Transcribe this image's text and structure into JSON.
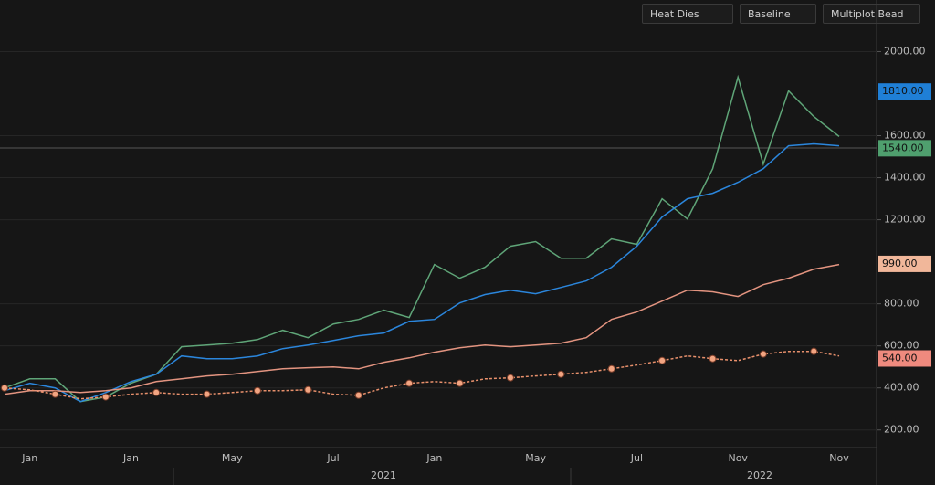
{
  "toolbar": {
    "buttons": [
      "Heat Dies",
      "Baseline",
      "Multiplot Bead"
    ]
  },
  "chart_data": {
    "type": "line",
    "categories": [
      null,
      "Jan",
      null,
      null,
      null,
      "Jan",
      null,
      null,
      null,
      "May",
      null,
      null,
      null,
      "Jul",
      null,
      null,
      null,
      "Jan",
      null,
      null,
      null,
      "May",
      null,
      null,
      null,
      "Jul",
      null,
      null,
      null,
      "Nov",
      null,
      null,
      null,
      "Nov"
    ],
    "year_labels": [
      "2021",
      "2022"
    ],
    "series": [
      {
        "name": "Green",
        "color": "#5fa578",
        "markers": false,
        "values": [
          400,
          443,
          443,
          335,
          357,
          422,
          465,
          596,
          604,
          613,
          630,
          674,
          639,
          704,
          726,
          770,
          735,
          987,
          922,
          974,
          1074,
          1096,
          1017,
          1017,
          1109,
          1083,
          1300,
          1204,
          1443,
          1878,
          1465,
          1813,
          1691,
          1596
        ]
      },
      {
        "name": "Blue",
        "color": "#2b86dc",
        "markers": false,
        "values": [
          387,
          422,
          400,
          335,
          378,
          430,
          465,
          552,
          539,
          539,
          552,
          587,
          604,
          626,
          648,
          661,
          717,
          726,
          804,
          844,
          865,
          848,
          878,
          909,
          974,
          1074,
          1213,
          1300,
          1326,
          1378,
          1443,
          1552,
          1561,
          1552
        ]
      },
      {
        "name": "Orange",
        "color": "#e39480",
        "markers": false,
        "values": [
          370,
          387,
          387,
          378,
          387,
          400,
          430,
          443,
          457,
          465,
          478,
          491,
          496,
          500,
          491,
          522,
          543,
          570,
          591,
          604,
          596,
          604,
          613,
          639,
          726,
          761,
          813,
          865,
          857,
          835,
          891,
          922,
          965,
          987
        ]
      },
      {
        "name": "Red",
        "color": "#e8906c",
        "markers": true,
        "values": [
          400,
          391,
          370,
          348,
          357,
          370,
          378,
          370,
          370,
          378,
          387,
          387,
          391,
          370,
          365,
          400,
          422,
          430,
          422,
          443,
          448,
          457,
          465,
          474,
          491,
          509,
          530,
          552,
          539,
          530,
          561,
          574,
          574,
          552
        ]
      }
    ],
    "price_tags": [
      {
        "label": "1810.00",
        "value": 1810,
        "color": "#1f7fd6"
      },
      {
        "label": "1540.00",
        "value": 1540,
        "color": "#4f9f6e"
      },
      {
        "label": "990.00",
        "value": 990,
        "color": "#f1b79a"
      },
      {
        "label": "540.00",
        "value": 540,
        "color": "#ef8a7e"
      }
    ],
    "ylim": [
      125,
      2115
    ],
    "yticks": [
      {
        "value": 2000,
        "label": "2000.00"
      },
      {
        "value": 1600,
        "label": "1600.00"
      },
      {
        "value": 1400,
        "label": "1400.00"
      },
      {
        "value": 1200,
        "label": "1200.00"
      },
      {
        "value": 800,
        "label": "800.00"
      },
      {
        "value": 600,
        "label": "600.00"
      },
      {
        "value": 400,
        "label": "400.00"
      },
      {
        "value": 200,
        "label": "200.00"
      }
    ],
    "grid": true
  }
}
